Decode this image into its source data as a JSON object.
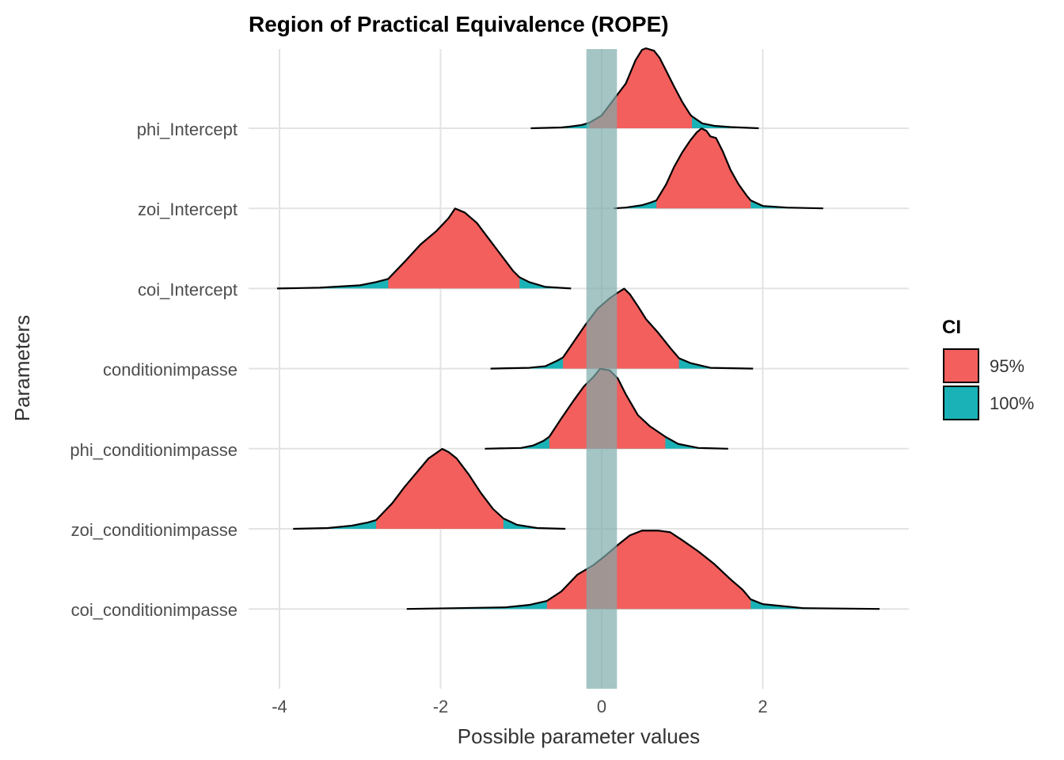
{
  "chart_data": {
    "type": "ridgeline",
    "title": "Region of Practical Equivalence (ROPE)",
    "xlabel": "Possible parameter values",
    "ylabel": "Parameters",
    "xlim": [
      -4.05,
      3.8
    ],
    "xticks": [
      -4,
      -2,
      0,
      2
    ],
    "xtick_labels": [
      "-4",
      "-2",
      "0",
      "2"
    ],
    "rope": [
      -0.19,
      0.19
    ],
    "grid": true,
    "legend": {
      "title": "CI",
      "position": "right",
      "entries": [
        {
          "label": "95%",
          "color": "#f25f5c"
        },
        {
          "label": "100%",
          "color": "#1ab2b6"
        }
      ]
    },
    "colors": {
      "ci95": "#f25f5c",
      "ci100": "#1ab2b6",
      "rope": "#7fadad"
    },
    "parameters": [
      {
        "name": "phi_Intercept",
        "ci95": [
          -0.15,
          1.12
        ],
        "density": [
          [
            -0.88,
            0
          ],
          [
            -0.5,
            0.01
          ],
          [
            -0.4,
            0.02
          ],
          [
            -0.25,
            0.04
          ],
          [
            -0.15,
            0.07
          ],
          [
            0.0,
            0.16
          ],
          [
            0.15,
            0.36
          ],
          [
            0.3,
            0.56
          ],
          [
            0.42,
            0.85
          ],
          [
            0.5,
            0.98
          ],
          [
            0.55,
            1.0
          ],
          [
            0.65,
            0.97
          ],
          [
            0.72,
            0.88
          ],
          [
            0.8,
            0.72
          ],
          [
            0.9,
            0.52
          ],
          [
            1.0,
            0.33
          ],
          [
            1.1,
            0.17
          ],
          [
            1.12,
            0.15
          ],
          [
            1.25,
            0.06
          ],
          [
            1.4,
            0.03
          ],
          [
            1.6,
            0.015
          ],
          [
            1.95,
            0
          ]
        ]
      },
      {
        "name": "zoi_Intercept",
        "ci95": [
          0.68,
          1.85
        ],
        "density": [
          [
            0.15,
            0
          ],
          [
            0.3,
            0.01
          ],
          [
            0.5,
            0.04
          ],
          [
            0.6,
            0.07
          ],
          [
            0.68,
            0.1
          ],
          [
            0.8,
            0.3
          ],
          [
            0.9,
            0.52
          ],
          [
            1.0,
            0.7
          ],
          [
            1.1,
            0.85
          ],
          [
            1.18,
            0.95
          ],
          [
            1.24,
            1.0
          ],
          [
            1.3,
            0.97
          ],
          [
            1.35,
            0.9
          ],
          [
            1.42,
            0.88
          ],
          [
            1.5,
            0.72
          ],
          [
            1.6,
            0.48
          ],
          [
            1.7,
            0.3
          ],
          [
            1.8,
            0.16
          ],
          [
            1.85,
            0.1
          ],
          [
            2.0,
            0.03
          ],
          [
            2.3,
            0.01
          ],
          [
            2.75,
            0
          ]
        ]
      },
      {
        "name": "coi_Intercept",
        "ci95": [
          -2.65,
          -1.02
        ],
        "density": [
          [
            -4.03,
            0
          ],
          [
            -3.5,
            0.01
          ],
          [
            -3.0,
            0.04
          ],
          [
            -2.8,
            0.08
          ],
          [
            -2.65,
            0.12
          ],
          [
            -2.45,
            0.33
          ],
          [
            -2.25,
            0.55
          ],
          [
            -2.05,
            0.72
          ],
          [
            -1.9,
            0.88
          ],
          [
            -1.82,
            1.0
          ],
          [
            -1.7,
            0.95
          ],
          [
            -1.55,
            0.82
          ],
          [
            -1.4,
            0.62
          ],
          [
            -1.25,
            0.42
          ],
          [
            -1.1,
            0.22
          ],
          [
            -1.02,
            0.14
          ],
          [
            -0.9,
            0.08
          ],
          [
            -0.7,
            0.02
          ],
          [
            -0.38,
            0
          ]
        ]
      },
      {
        "name": "conditionimpasse",
        "ci95": [
          -0.48,
          0.96
        ],
        "density": [
          [
            -1.38,
            0
          ],
          [
            -0.9,
            0.01
          ],
          [
            -0.7,
            0.03
          ],
          [
            -0.55,
            0.1
          ],
          [
            -0.48,
            0.14
          ],
          [
            -0.35,
            0.33
          ],
          [
            -0.2,
            0.55
          ],
          [
            -0.05,
            0.75
          ],
          [
            0.1,
            0.88
          ],
          [
            0.2,
            0.95
          ],
          [
            0.28,
            1.0
          ],
          [
            0.35,
            0.93
          ],
          [
            0.45,
            0.78
          ],
          [
            0.55,
            0.62
          ],
          [
            0.7,
            0.45
          ],
          [
            0.85,
            0.26
          ],
          [
            0.96,
            0.13
          ],
          [
            1.1,
            0.07
          ],
          [
            1.35,
            0.01
          ],
          [
            1.88,
            0
          ]
        ]
      },
      {
        "name": "phi_conditionimpasse",
        "ci95": [
          -0.65,
          0.79
        ],
        "density": [
          [
            -1.45,
            0
          ],
          [
            -1.0,
            0.01
          ],
          [
            -0.85,
            0.04
          ],
          [
            -0.72,
            0.1
          ],
          [
            -0.65,
            0.15
          ],
          [
            -0.5,
            0.38
          ],
          [
            -0.35,
            0.6
          ],
          [
            -0.22,
            0.78
          ],
          [
            -0.1,
            0.9
          ],
          [
            -0.02,
            1.0
          ],
          [
            0.1,
            0.98
          ],
          [
            0.2,
            0.88
          ],
          [
            0.3,
            0.68
          ],
          [
            0.45,
            0.42
          ],
          [
            0.6,
            0.28
          ],
          [
            0.79,
            0.15
          ],
          [
            0.95,
            0.06
          ],
          [
            1.2,
            0.01
          ],
          [
            1.57,
            0
          ]
        ]
      },
      {
        "name": "zoi_conditionimpasse",
        "ci95": [
          -2.8,
          -1.22
        ],
        "density": [
          [
            -3.83,
            0
          ],
          [
            -3.4,
            0.01
          ],
          [
            -3.1,
            0.04
          ],
          [
            -2.9,
            0.08
          ],
          [
            -2.8,
            0.11
          ],
          [
            -2.6,
            0.32
          ],
          [
            -2.45,
            0.52
          ],
          [
            -2.3,
            0.7
          ],
          [
            -2.15,
            0.88
          ],
          [
            -2.05,
            0.95
          ],
          [
            -1.98,
            1.0
          ],
          [
            -1.9,
            0.96
          ],
          [
            -1.8,
            0.88
          ],
          [
            -1.65,
            0.68
          ],
          [
            -1.5,
            0.45
          ],
          [
            -1.35,
            0.25
          ],
          [
            -1.22,
            0.13
          ],
          [
            -1.05,
            0.05
          ],
          [
            -0.8,
            0.01
          ],
          [
            -0.45,
            0
          ]
        ]
      },
      {
        "name": "coi_conditionimpasse",
        "ci95": [
          -0.68,
          1.85
        ],
        "density": [
          [
            -2.42,
            0
          ],
          [
            -1.8,
            0.01
          ],
          [
            -1.2,
            0.02
          ],
          [
            -0.9,
            0.05
          ],
          [
            -0.68,
            0.1
          ],
          [
            -0.5,
            0.22
          ],
          [
            -0.3,
            0.43
          ],
          [
            -0.1,
            0.55
          ],
          [
            0.05,
            0.67
          ],
          [
            0.2,
            0.8
          ],
          [
            0.35,
            0.92
          ],
          [
            0.5,
            0.98
          ],
          [
            0.7,
            0.98
          ],
          [
            0.85,
            0.96
          ],
          [
            1.0,
            0.86
          ],
          [
            1.2,
            0.72
          ],
          [
            1.4,
            0.56
          ],
          [
            1.6,
            0.37
          ],
          [
            1.75,
            0.24
          ],
          [
            1.85,
            0.12
          ],
          [
            2.0,
            0.06
          ],
          [
            2.5,
            0.01
          ],
          [
            3.45,
            0
          ]
        ]
      }
    ]
  }
}
